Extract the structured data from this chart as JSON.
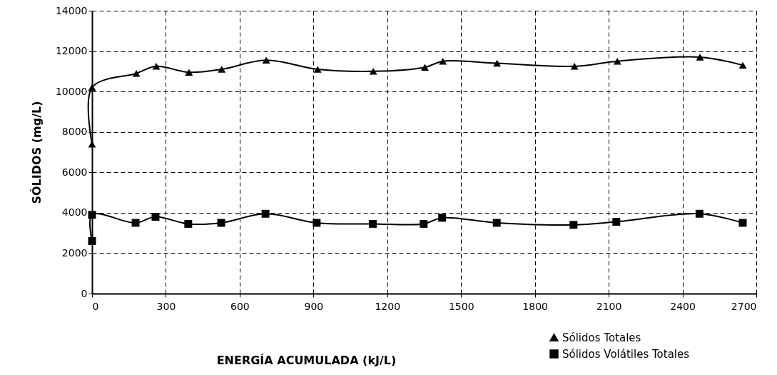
{
  "chart_data": {
    "type": "line",
    "xlabel": "ENERGÍA ACUMULADA (kJ/L)",
    "ylabel": "SÓLIDOS (mg/L)",
    "xlim": [
      0,
      2700
    ],
    "xticks": [
      0,
      300,
      600,
      900,
      1200,
      1500,
      1800,
      2100,
      2400,
      2700
    ],
    "ylim": [
      0,
      14000
    ],
    "yticks": [
      0,
      2000,
      4000,
      6000,
      8000,
      10000,
      12000,
      14000
    ],
    "grid": true,
    "legend": "bottom right",
    "series": [
      {
        "name": "Sólidos Totales",
        "color": "#000000",
        "marker": "triangle",
        "x": [
          0,
          0,
          180,
          261,
          394,
          527,
          708,
          917,
          1143,
          1353,
          1426,
          1646,
          1961,
          2135,
          2471,
          2645
        ],
        "values": [
          7400,
          10200,
          10900,
          11250,
          10950,
          11100,
          11550,
          11100,
          11000,
          11200,
          11500,
          11400,
          11250,
          11500,
          11700,
          11300
        ]
      },
      {
        "name": "Sólidos Volátiles Totales",
        "color": "#000000",
        "marker": "square",
        "x": [
          0,
          0,
          177,
          258,
          391,
          525,
          705,
          913,
          1141,
          1348,
          1423,
          1645,
          1957,
          2131,
          2469,
          2645
        ],
        "values": [
          2600,
          3900,
          3500,
          3800,
          3450,
          3500,
          3950,
          3500,
          3450,
          3450,
          3750,
          3500,
          3400,
          3550,
          3950,
          3500
        ]
      }
    ]
  }
}
